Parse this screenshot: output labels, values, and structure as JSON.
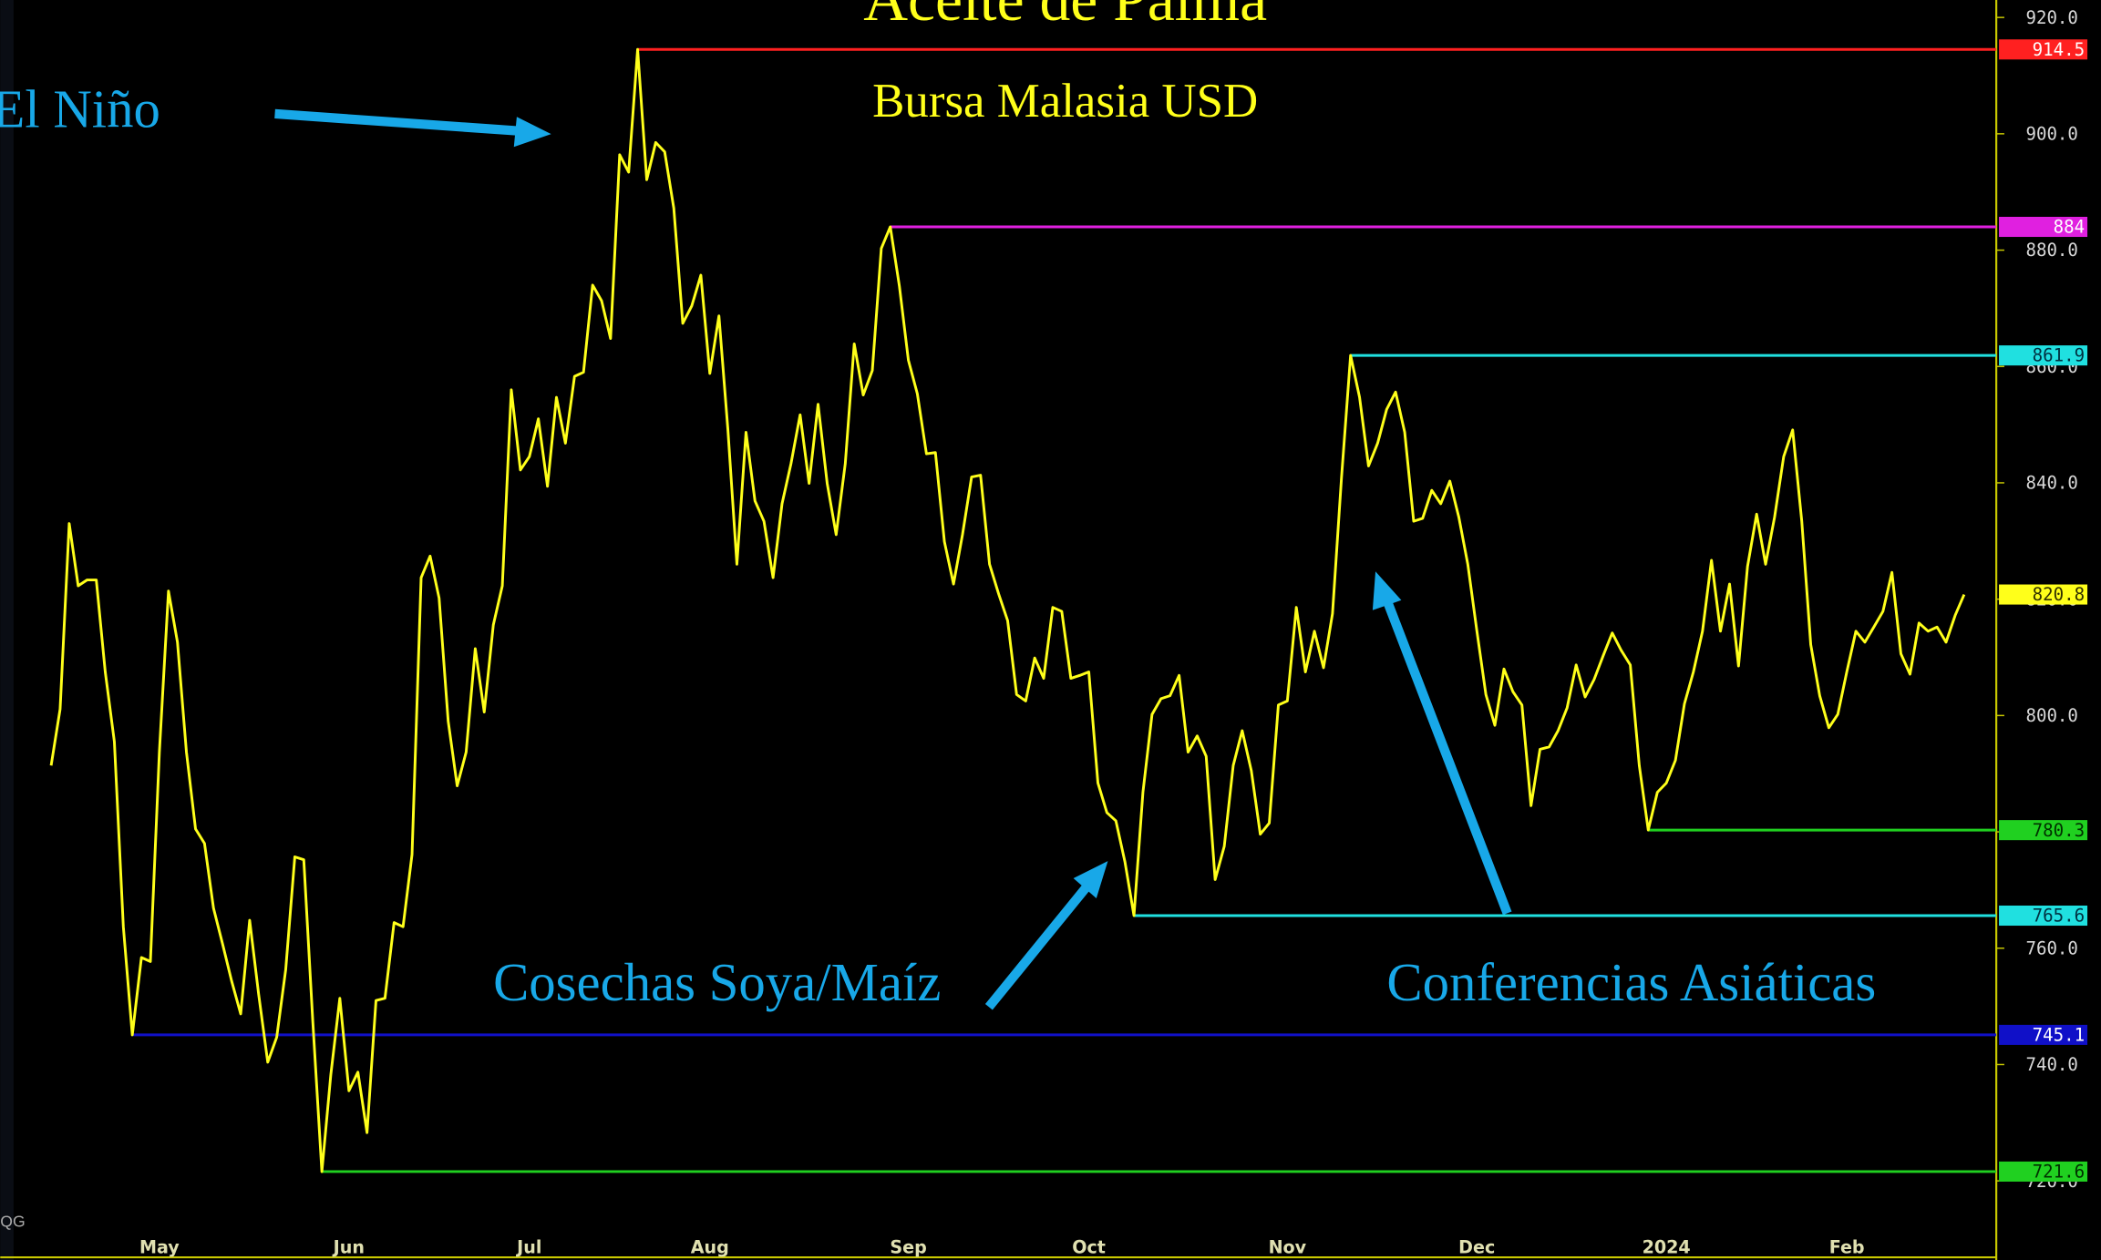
{
  "chart_data": {
    "type": "line",
    "title": "Aceite de Palma",
    "subtitle": "Bursa Malasia USD",
    "annotations": [
      "El Niño",
      "Cosechas Soya/Maíz",
      "Conferencias Asiáticas"
    ],
    "watermark": "QG",
    "color": "#ffff1a",
    "categories": [
      null,
      null,
      null,
      null,
      null,
      null,
      null,
      null,
      null,
      null,
      null,
      null,
      "May",
      null,
      null,
      null,
      null,
      null,
      null,
      null,
      null,
      null,
      null,
      null,
      null,
      null,
      null,
      null,
      null,
      null,
      null,
      null,
      null,
      "Jun",
      null,
      null,
      null,
      null,
      null,
      null,
      null,
      null,
      null,
      null,
      null,
      null,
      null,
      null,
      null,
      null,
      null,
      null,
      null,
      "Jul",
      null,
      null,
      null,
      null,
      null,
      null,
      null,
      null,
      null,
      null,
      null,
      null,
      null,
      null,
      null,
      null,
      null,
      null,
      null,
      "Aug",
      null,
      null,
      null,
      null,
      null,
      null,
      null,
      null,
      null,
      null,
      null,
      null,
      null,
      null,
      null,
      null,
      null,
      null,
      null,
      null,
      null,
      "Sep",
      null,
      null,
      null,
      null,
      null,
      null,
      null,
      null,
      null,
      null,
      null,
      null,
      null,
      null,
      null,
      null,
      null,
      null,
      null,
      "Oct",
      null,
      null,
      null,
      null,
      null,
      null,
      null,
      null,
      null,
      null,
      null,
      null,
      null,
      null,
      null,
      null,
      null,
      null,
      null,
      null,
      null,
      "Nov",
      null,
      null,
      null,
      null,
      null,
      null,
      null,
      null,
      null,
      null,
      null,
      null,
      null,
      null,
      null,
      null,
      null,
      null,
      null,
      null,
      "Dec",
      null,
      null,
      null,
      null,
      null,
      null,
      null,
      null,
      null,
      null,
      null,
      null,
      null,
      null,
      null,
      null,
      null,
      null,
      null,
      null,
      "2024",
      null,
      null,
      null,
      null,
      null,
      null,
      null,
      null,
      null,
      null,
      null,
      null,
      null,
      null,
      null,
      null,
      null,
      null,
      null,
      "Feb",
      null,
      null,
      null,
      null,
      null,
      null,
      null,
      null,
      null,
      null,
      null,
      null,
      null
    ],
    "values": [
      791.4,
      801.1,
      833.0,
      822.3,
      823.3,
      823.3,
      807.5,
      795.5,
      763.7,
      745.1,
      758.4,
      757.7,
      793.7,
      821.4,
      812.6,
      793.7,
      780.5,
      778.0,
      766.9,
      760.7,
      754.4,
      748.7,
      764.8,
      752.1,
      740.4,
      744.7,
      756.3,
      775.7,
      775.2,
      747.5,
      721.6,
      738.3,
      751.4,
      735.5,
      738.7,
      728.3,
      751.0,
      751.4,
      764.4,
      763.7,
      776.1,
      823.7,
      827.4,
      820.2,
      799.0,
      787.9,
      793.7,
      811.5,
      800.6,
      815.6,
      822.3,
      856.0,
      842.2,
      844.5,
      851.0,
      839.4,
      854.7,
      846.8,
      858.3,
      859.0,
      874.0,
      871.3,
      864.8,
      896.4,
      893.4,
      914.5,
      892.1,
      898.5,
      896.9,
      887.2,
      867.4,
      870.4,
      875.7,
      858.8,
      868.7,
      849.1,
      826.0,
      848.7,
      836.9,
      833.4,
      823.7,
      836.4,
      843.3,
      851.7,
      839.9,
      853.5,
      839.9,
      831.1,
      843.3,
      863.9,
      855.1,
      859.3,
      880.3,
      884.0,
      873.8,
      861.1,
      855.3,
      845.0,
      845.2,
      829.9,
      822.6,
      831.1,
      841.0,
      841.3,
      826.0,
      820.9,
      816.3,
      803.6,
      802.5,
      809.9,
      806.4,
      818.6,
      817.9,
      806.4,
      806.9,
      807.5,
      788.4,
      783.3,
      781.9,
      774.8,
      765.6,
      786.8,
      800.2,
      802.9,
      803.4,
      806.9,
      793.7,
      796.5,
      793.0,
      771.8,
      777.5,
      791.4,
      797.4,
      790.5,
      779.6,
      781.5,
      801.8,
      802.5,
      818.6,
      807.5,
      814.5,
      808.2,
      817.5,
      840.8,
      861.9,
      854.7,
      842.9,
      846.8,
      852.6,
      855.6,
      848.7,
      833.4,
      833.9,
      838.7,
      836.4,
      840.3,
      834.1,
      826.0,
      814.5,
      803.6,
      798.3,
      808.0,
      804.1,
      801.8,
      784.5,
      794.2,
      794.6,
      797.4,
      801.3,
      808.7,
      803.2,
      806.2,
      810.3,
      814.2,
      811.2,
      808.7,
      791.4,
      780.3,
      786.8,
      788.4,
      792.3,
      802.0,
      807.5,
      814.5,
      826.7,
      814.5,
      822.6,
      808.5,
      825.6,
      834.6,
      826.0,
      834.1,
      844.5,
      849.1,
      833.4,
      812.2,
      803.4,
      797.9,
      800.2,
      807.5,
      814.5,
      812.6,
      815.2,
      817.9,
      824.6,
      810.6,
      807.1,
      815.9,
      814.5,
      815.2,
      812.6,
      817.2,
      820.8
    ],
    "ylim": [
      706.4,
      923
    ],
    "yticks": [
      {
        "value": 720,
        "label": "720.0"
      },
      {
        "value": 740,
        "label": "740.0"
      },
      {
        "value": 760,
        "label": "760.0"
      },
      {
        "value": 780,
        "label": "780.0"
      },
      {
        "value": 800,
        "label": "800.0"
      },
      {
        "value": 820,
        "label": "820.0"
      },
      {
        "value": 840,
        "label": "840.0"
      },
      {
        "value": 860,
        "label": "860.0"
      },
      {
        "value": 880,
        "label": "880.0"
      },
      {
        "value": 900,
        "label": "900.0"
      },
      {
        "value": 920,
        "label": "920.0"
      }
    ],
    "levels": [
      {
        "value": 914.5,
        "color": "#ff2020",
        "text_color": "#ffffff",
        "line": true
      },
      {
        "value": 884.0,
        "color": "#e020e0",
        "text_color": "#ffffff",
        "line": true
      },
      {
        "value": 861.9,
        "color": "#20e0e0",
        "text_color": "#003040",
        "line": true
      },
      {
        "value": 820.8,
        "color": "#ffff1a",
        "text_color": "#303000",
        "line": false
      },
      {
        "value": 780.3,
        "color": "#20d020",
        "text_color": "#003000",
        "line": true
      },
      {
        "value": 765.6,
        "color": "#20e0e0",
        "text_color": "#003040",
        "line": true
      },
      {
        "value": 745.1,
        "color": "#1010c8",
        "text_color": "#ffffff",
        "line": true
      },
      {
        "value": 721.6,
        "color": "#20d020",
        "text_color": "#003000",
        "line": true
      }
    ]
  }
}
